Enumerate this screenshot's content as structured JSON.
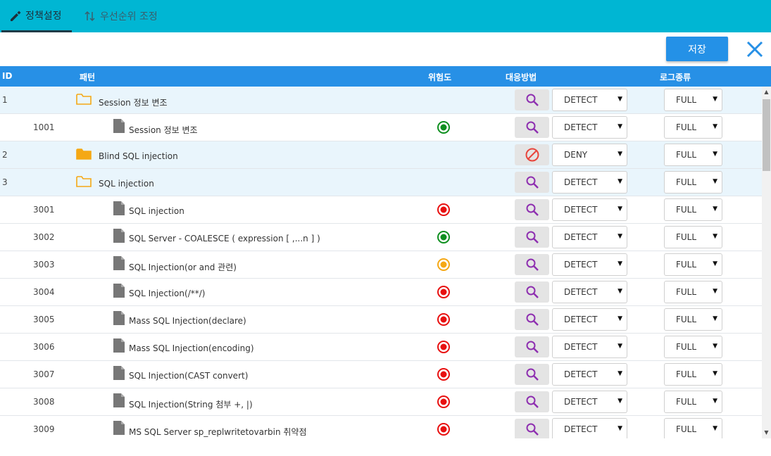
{
  "tabs": [
    {
      "label": "정책설정",
      "icon": "pencil-icon"
    },
    {
      "label": "우선순위 조정",
      "icon": "sort-arrows-icon"
    }
  ],
  "toolbar": {
    "save_label": "저장",
    "close_icon": "close-icon"
  },
  "table": {
    "headers": {
      "id": "ID",
      "pattern": "패턴",
      "risk": "위험도",
      "response": "대응방법",
      "log": "로그종류"
    },
    "rows": [
      {
        "id": "1",
        "name": "Session 정보 변조",
        "kind": "group",
        "folder": "outline",
        "risk": "",
        "action": "search",
        "response": "DETECT",
        "log": "FULL"
      },
      {
        "id": "1001",
        "name": "Session 정보 변조",
        "kind": "item",
        "risk": "green",
        "action": "search",
        "response": "DETECT",
        "log": "FULL"
      },
      {
        "id": "2",
        "name": "Blind SQL injection",
        "kind": "group",
        "folder": "filled",
        "risk": "",
        "action": "deny",
        "response": "DENY",
        "log": "FULL"
      },
      {
        "id": "3",
        "name": "SQL injection",
        "kind": "group",
        "folder": "outline",
        "risk": "",
        "action": "search",
        "response": "DETECT",
        "log": "FULL"
      },
      {
        "id": "3001",
        "name": "SQL injection",
        "kind": "item",
        "risk": "red",
        "action": "search",
        "response": "DETECT",
        "log": "FULL"
      },
      {
        "id": "3002",
        "name": "SQL Server - COALESCE ( expression [ ,...n ] )",
        "kind": "item",
        "risk": "green",
        "action": "search",
        "response": "DETECT",
        "log": "FULL"
      },
      {
        "id": "3003",
        "name": "SQL Injection(or and 관련)",
        "kind": "item",
        "risk": "orange",
        "action": "search",
        "response": "DETECT",
        "log": "FULL"
      },
      {
        "id": "3004",
        "name": "SQL Injection(/**/)",
        "kind": "item",
        "risk": "red",
        "action": "search",
        "response": "DETECT",
        "log": "FULL"
      },
      {
        "id": "3005",
        "name": "Mass SQL Injection(declare)",
        "kind": "item",
        "risk": "red",
        "action": "search",
        "response": "DETECT",
        "log": "FULL"
      },
      {
        "id": "3006",
        "name": "Mass SQL Injection(encoding)",
        "kind": "item",
        "risk": "red",
        "action": "search",
        "response": "DETECT",
        "log": "FULL"
      },
      {
        "id": "3007",
        "name": "SQL Injection(CAST convert)",
        "kind": "item",
        "risk": "red",
        "action": "search",
        "response": "DETECT",
        "log": "FULL"
      },
      {
        "id": "3008",
        "name": "SQL Injection(String 첨부 +, |)",
        "kind": "item",
        "risk": "red",
        "action": "search",
        "response": "DETECT",
        "log": "FULL"
      },
      {
        "id": "3009",
        "name": "MS SQL Server sp_replwritetovarbin 취약점",
        "kind": "item",
        "risk": "red",
        "action": "search",
        "response": "DETECT",
        "log": "FULL"
      }
    ]
  },
  "colors": {
    "topbar": "#00b6d3",
    "header": "#2790e6",
    "save": "#2491e7",
    "risk_red": "#e81010",
    "risk_green": "#0e8f1f",
    "risk_orange": "#f5a815",
    "folder": "#f5a815",
    "search_icon": "#8e2fb0",
    "deny_icon": "#e8453c"
  }
}
